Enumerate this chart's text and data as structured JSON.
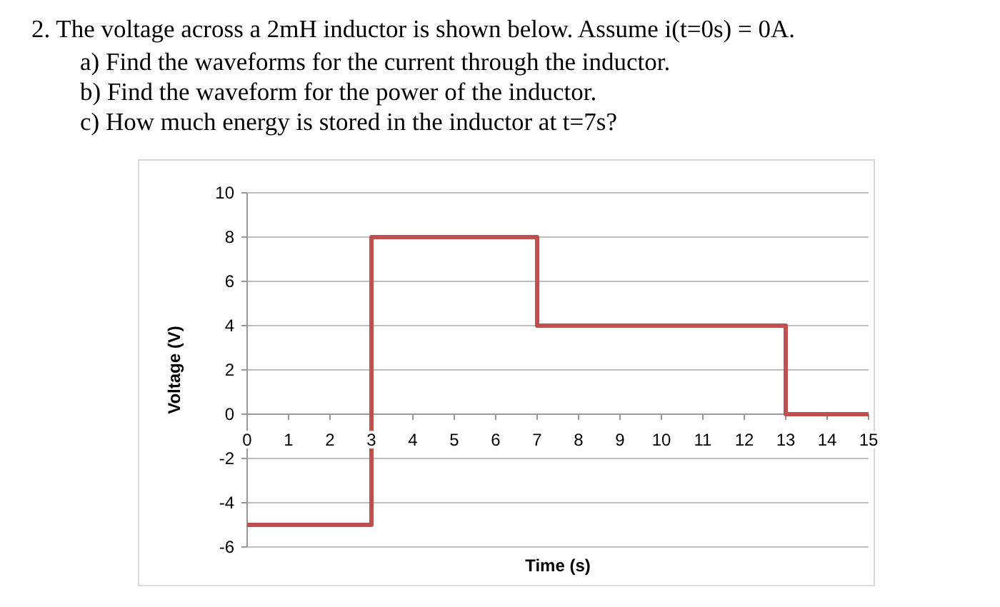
{
  "chart_data": {
    "type": "step",
    "title": "2. The voltage across a 2mH inductor is shown below. Assume i(t=0s) = 0A.",
    "annotations": [
      "a) Find the waveforms for the current through the inductor.",
      "b) Find the waveform for the power of the inductor.",
      "c) How much energy is stored in the inductor at t=7s?"
    ],
    "xlabel": "Time (s)",
    "ylabel": "Voltage (V)",
    "x": [
      0,
      3,
      7,
      13,
      15
    ],
    "series": [
      {
        "color": "#c0504d",
        "values": [
          -5,
          8,
          4,
          0,
          0
        ]
      }
    ],
    "xlim": [
      0,
      15
    ],
    "xticks": [
      0,
      1,
      2,
      3,
      4,
      5,
      6,
      7,
      8,
      9,
      10,
      11,
      12,
      13,
      14,
      15
    ],
    "ylim": [
      -6,
      10
    ],
    "yticks": [
      -6,
      -4,
      -2,
      0,
      2,
      4,
      6,
      8,
      10
    ],
    "grid": "y"
  }
}
